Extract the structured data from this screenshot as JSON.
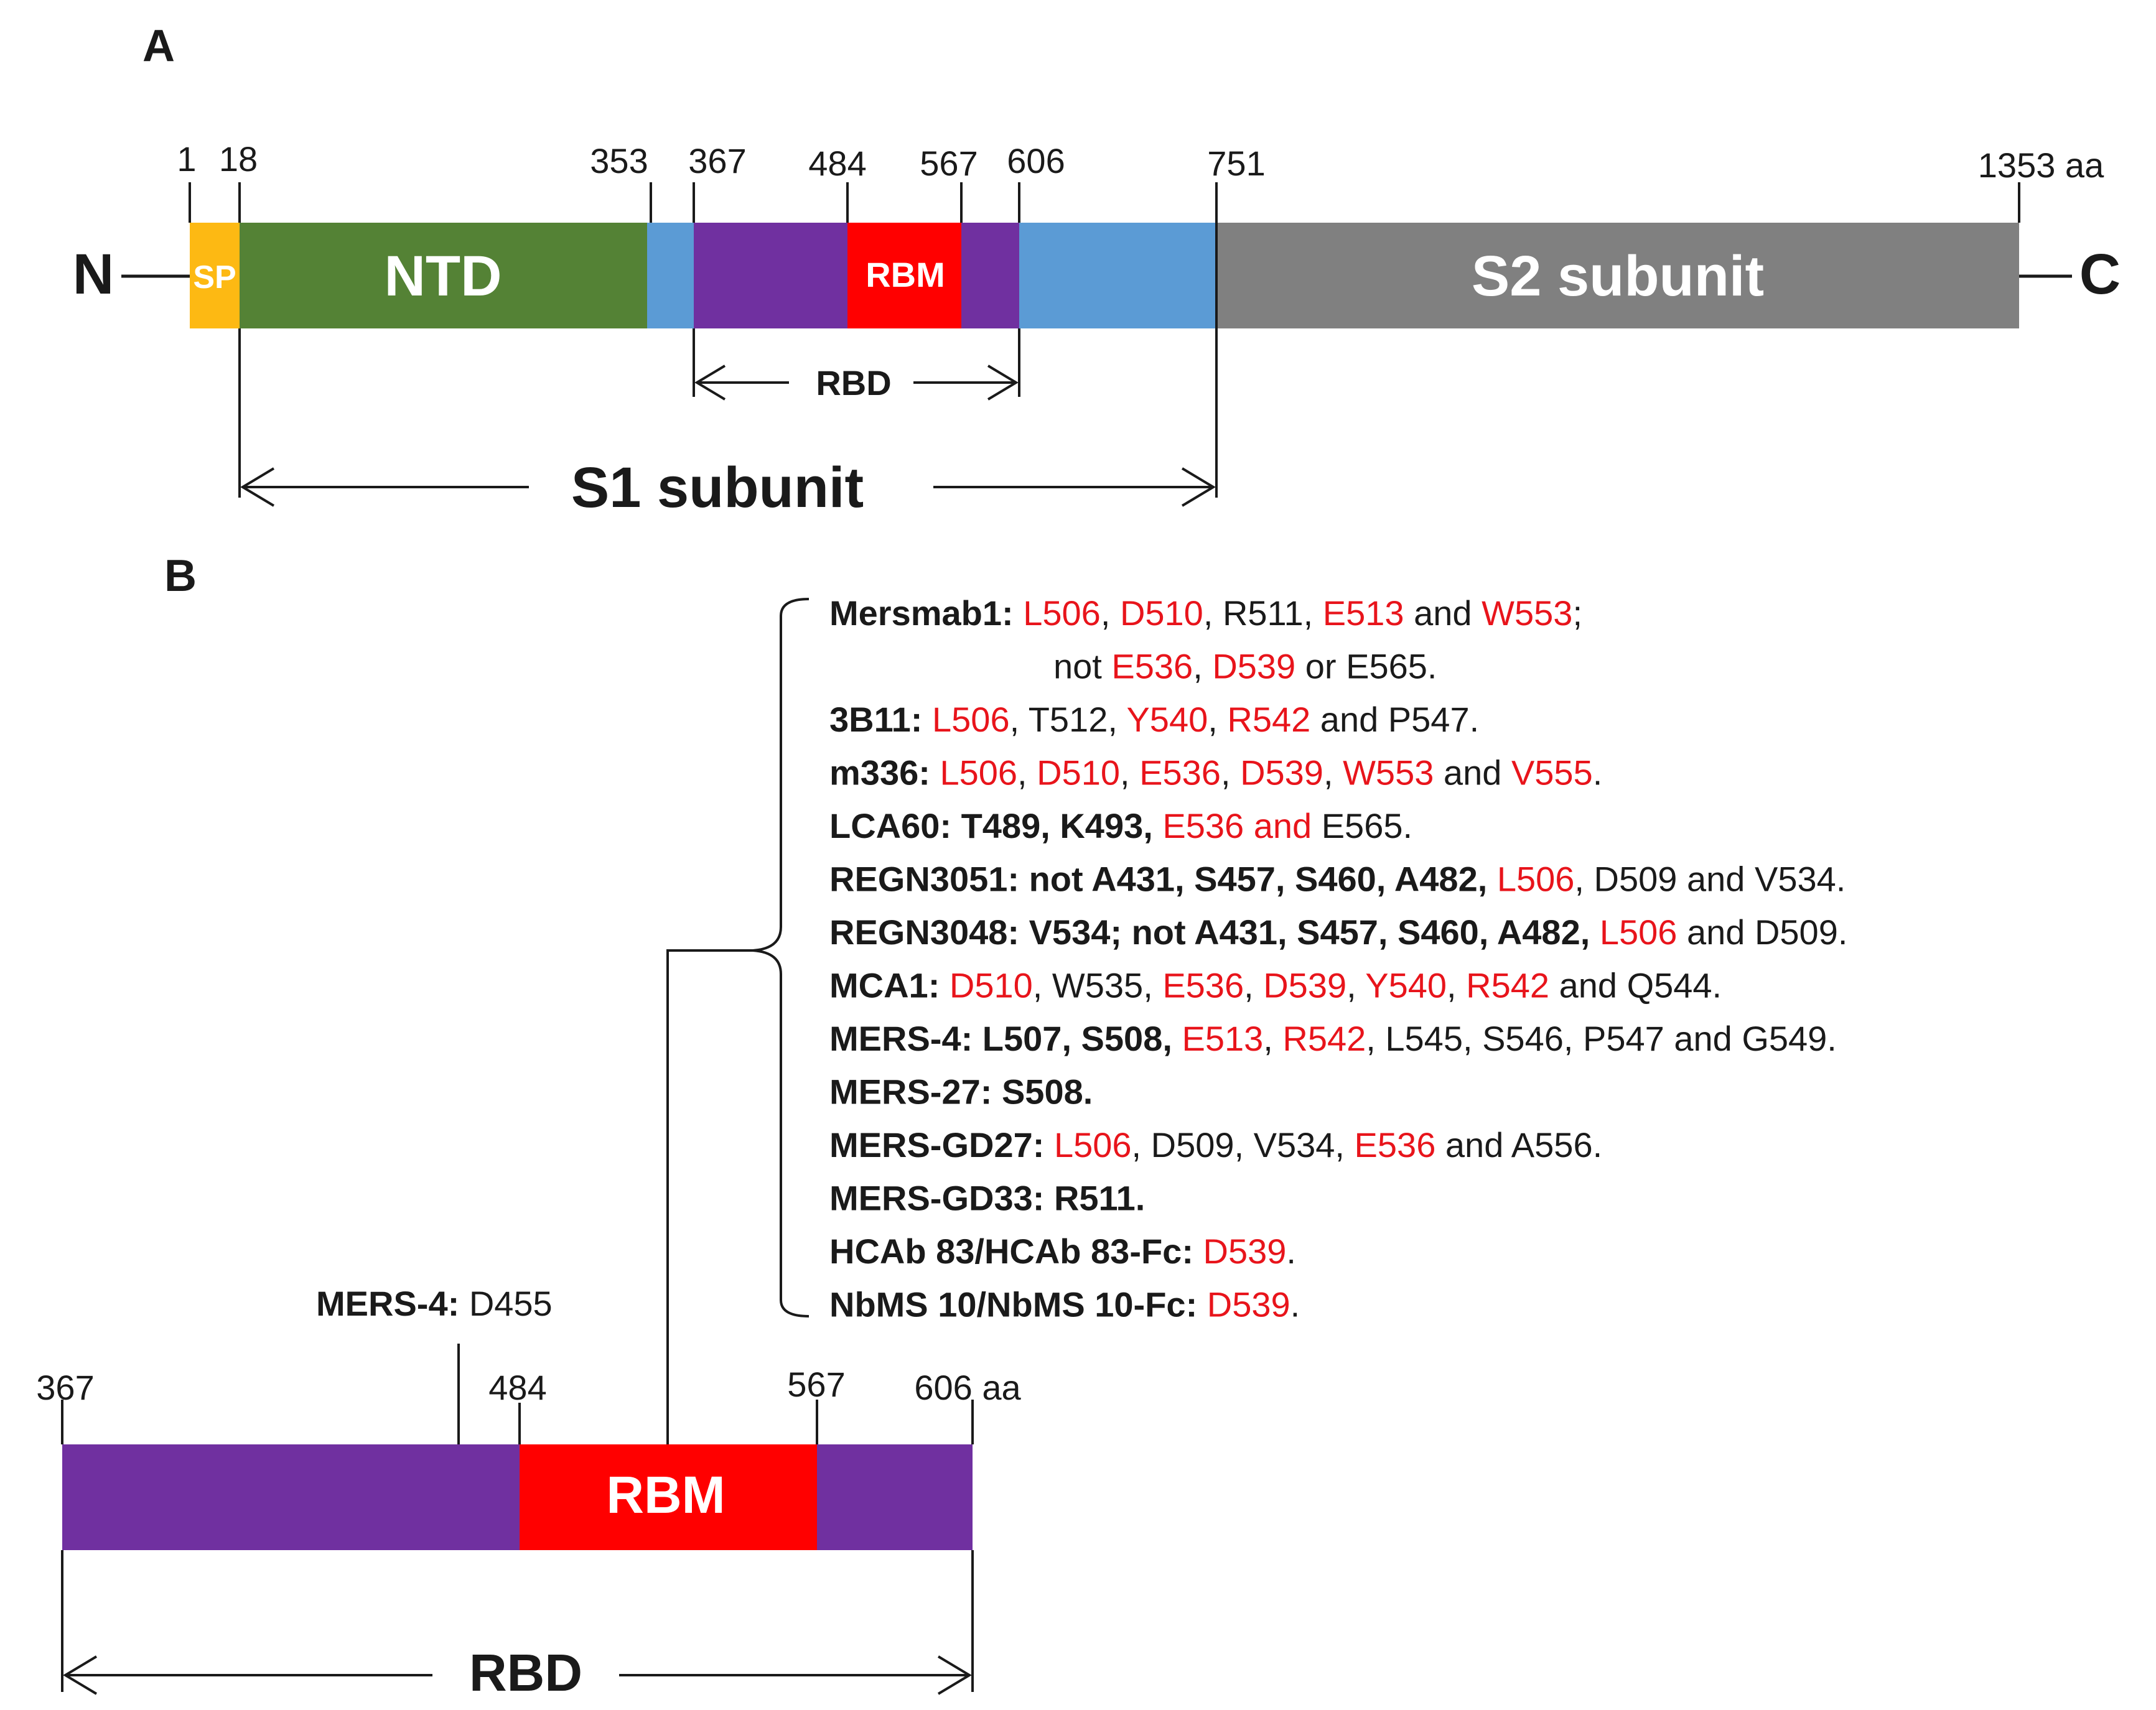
{
  "colors": {
    "sp": "#FDB913",
    "ntd": "#548235",
    "linker": "#5B9BD5",
    "rbd": "#7030A0",
    "rbm": "#FF0000",
    "s2": "#808080",
    "text": "#1a1a1a",
    "highlight": "#E8141B",
    "white": "#ffffff"
  },
  "panel_a": {
    "label": "A",
    "n_terminus": "N",
    "c_terminus": "C",
    "positions": [
      {
        "id": "p1",
        "text": "1"
      },
      {
        "id": "p18",
        "text": "18"
      },
      {
        "id": "p353",
        "text": "353"
      },
      {
        "id": "p367",
        "text": "367"
      },
      {
        "id": "p484",
        "text": "484"
      },
      {
        "id": "p567",
        "text": "567"
      },
      {
        "id": "p606",
        "text": "606"
      },
      {
        "id": "p751",
        "text": "751"
      },
      {
        "id": "p1353",
        "text": "1353 aa"
      }
    ],
    "domains": {
      "sp": "SP",
      "ntd": "NTD",
      "rbm": "RBM",
      "s2": "S2 subunit"
    },
    "rbd_label": "RBD",
    "s1_label": "S1 subunit"
  },
  "panel_b": {
    "label": "B",
    "positions": [
      {
        "id": "p367",
        "text": "367"
      },
      {
        "id": "p484",
        "text": "484"
      },
      {
        "id": "p567",
        "text": "567"
      },
      {
        "id": "p606",
        "text": "606 aa"
      }
    ],
    "rbm_label": "RBM",
    "rbd_label": "RBD",
    "mers4_site": {
      "name": "MERS-4",
      "sep": ": ",
      "residue": "D455"
    },
    "antibodies": [
      {
        "name": "Mersmab1",
        "segs": [
          [
            ": ",
            0
          ],
          [
            "L506",
            1
          ],
          [
            ", ",
            0
          ],
          [
            "D510",
            1
          ],
          [
            ", R511, ",
            0
          ],
          [
            "E513",
            1
          ],
          [
            " and ",
            0
          ],
          [
            "W553",
            1
          ],
          [
            ";",
            0
          ]
        ]
      },
      {
        "name": "",
        "segs": [
          [
            "not ",
            0
          ],
          [
            "E536",
            1
          ],
          [
            ", ",
            0
          ],
          [
            "D539",
            1
          ],
          [
            " or E565.",
            0
          ]
        ]
      },
      {
        "name": "3B11",
        "segs": [
          [
            ": ",
            0
          ],
          [
            "L506",
            1
          ],
          [
            ", T512, ",
            0
          ],
          [
            "Y540",
            1
          ],
          [
            ", ",
            0
          ],
          [
            "R542",
            1
          ],
          [
            " and P547.",
            0
          ]
        ]
      },
      {
        "name": "m336",
        "segs": [
          [
            ": ",
            0
          ],
          [
            "L506",
            1
          ],
          [
            ", ",
            0
          ],
          [
            "D510",
            1
          ],
          [
            ", ",
            0
          ],
          [
            "E536",
            1
          ],
          [
            ", ",
            0
          ],
          [
            "D539",
            1
          ],
          [
            ", ",
            0
          ],
          [
            "W553",
            1
          ],
          [
            " and ",
            0
          ],
          [
            "V555",
            1
          ],
          [
            ".",
            0
          ]
        ]
      },
      {
        "name": "LCA60",
        "segs": [
          [
            ": T489, K493, ",
            0
          ],
          [
            "E536 and",
            1
          ],
          [
            " E565.",
            0
          ]
        ]
      },
      {
        "name": "REGN3051",
        "segs": [
          [
            ": not A431, S457, S460, A482, ",
            0
          ],
          [
            "L506",
            1
          ],
          [
            ", D509 and V534.",
            0
          ]
        ]
      },
      {
        "name": "REGN3048",
        "segs": [
          [
            ": V534; not A431, S457, S460, A482, ",
            0
          ],
          [
            "L506",
            1
          ],
          [
            " and D509.",
            0
          ]
        ]
      },
      {
        "name": "MCA1",
        "segs": [
          [
            ": ",
            0
          ],
          [
            "D510",
            1
          ],
          [
            ", W535, ",
            0
          ],
          [
            "E536",
            1
          ],
          [
            ", ",
            0
          ],
          [
            "D539",
            1
          ],
          [
            ", ",
            0
          ],
          [
            "Y540",
            1
          ],
          [
            ", ",
            0
          ],
          [
            "R542",
            1
          ],
          [
            " and Q544.",
            0
          ]
        ]
      },
      {
        "name": "MERS-4",
        "segs": [
          [
            ": L507, S508, ",
            0
          ],
          [
            "E513",
            1
          ],
          [
            ", ",
            0
          ],
          [
            "R542",
            1
          ],
          [
            ", L545, S546, P547 and G549.",
            0
          ]
        ]
      },
      {
        "name": "MERS-27",
        "segs": [
          [
            ": S508.",
            0
          ]
        ]
      },
      {
        "name": "MERS-GD27",
        "segs": [
          [
            ": ",
            0
          ],
          [
            "L506",
            1
          ],
          [
            ", D509, V534, ",
            0
          ],
          [
            "E536",
            1
          ],
          [
            " and A556.",
            0
          ]
        ]
      },
      {
        "name": "MERS-GD33",
        "segs": [
          [
            ": R511.",
            0
          ]
        ]
      },
      {
        "name": "HCAb 83/HCAb 83-Fc",
        "segs": [
          [
            ": ",
            0
          ],
          [
            "D539",
            1
          ],
          [
            ".",
            0
          ]
        ]
      },
      {
        "name": "NbMS 10/NbMS 10-Fc",
        "segs": [
          [
            ": ",
            0
          ],
          [
            "D539",
            1
          ],
          [
            ".",
            0
          ]
        ]
      }
    ]
  }
}
